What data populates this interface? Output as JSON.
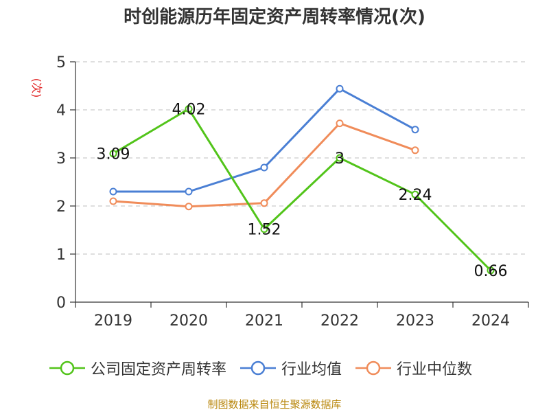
{
  "title": "时创能源历年固定资产周转率情况(次)",
  "source": "制图数据来自恒生聚源数据库",
  "chart_data": {
    "type": "line",
    "title": "时创能源历年固定资产周转率情况(次)",
    "ylabel": "(次)",
    "xlabel": "",
    "categories": [
      "2019",
      "2020",
      "2021",
      "2022",
      "2023",
      "2024"
    ],
    "ylim": [
      0,
      5
    ],
    "yticks": [
      0,
      1,
      2,
      3,
      4,
      5
    ],
    "grid": true,
    "legend_position": "bottom",
    "series": [
      {
        "name": "公司固定资产周转率",
        "color": "#52c41a",
        "values": [
          3.09,
          4.02,
          1.52,
          3,
          2.24,
          0.66
        ],
        "labels": [
          "3.09",
          "4.02",
          "1.52",
          "3",
          "2.24",
          "0.66"
        ]
      },
      {
        "name": "行业均值",
        "color": "#4a7fd4",
        "values": [
          2.3,
          2.3,
          2.8,
          4.44,
          3.59,
          null
        ]
      },
      {
        "name": "行业中位数",
        "color": "#f08c5a",
        "values": [
          2.1,
          1.99,
          2.06,
          3.72,
          3.16,
          null
        ]
      }
    ]
  }
}
